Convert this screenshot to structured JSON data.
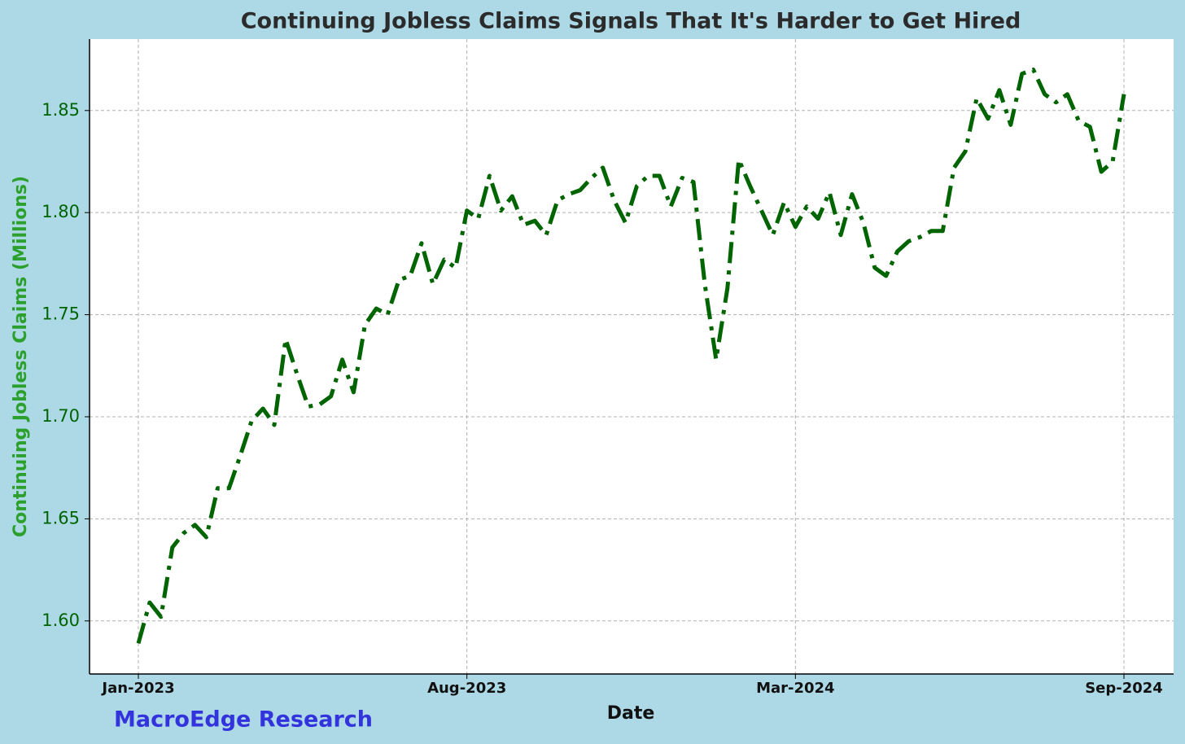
{
  "chart_data": {
    "type": "line",
    "title": "Continuing Jobless Claims Signals That It's Harder to Get Hired",
    "x_label": "Date",
    "y_label": "Continuing Jobless Claims (Millions)",
    "annotation": "MacroEdge Research",
    "categories": [
      "Jan-2023",
      null,
      null,
      null,
      null,
      null,
      null,
      null,
      null,
      null,
      null,
      null,
      null,
      null,
      null,
      null,
      null,
      null,
      null,
      null,
      null,
      null,
      null,
      null,
      null,
      null,
      null,
      null,
      null,
      "Aug-2023",
      null,
      null,
      null,
      null,
      null,
      null,
      null,
      null,
      null,
      null,
      null,
      null,
      null,
      null,
      null,
      null,
      null,
      null,
      null,
      null,
      null,
      null,
      null,
      null,
      null,
      null,
      null,
      null,
      "Mar-2024",
      null,
      null,
      null,
      null,
      null,
      null,
      null,
      null,
      null,
      null,
      null,
      null,
      null,
      null,
      null,
      null,
      null,
      null,
      null,
      null,
      null,
      null,
      null,
      null,
      null,
      null,
      null,
      null,
      "Sep-2024"
    ],
    "series": [
      {
        "name": "Continuing Jobless Claims",
        "color": "#006400",
        "values": [
          1.589,
          1.609,
          1.602,
          1.636,
          1.643,
          1.647,
          1.641,
          1.665,
          1.665,
          1.681,
          1.698,
          1.704,
          1.696,
          1.738,
          1.721,
          1.705,
          1.706,
          1.71,
          1.728,
          1.712,
          1.745,
          1.753,
          1.75,
          1.767,
          1.769,
          1.785,
          1.765,
          1.777,
          1.773,
          1.801,
          1.797,
          1.818,
          1.801,
          1.808,
          1.794,
          1.796,
          1.789,
          1.806,
          1.809,
          1.811,
          1.817,
          1.822,
          1.806,
          1.795,
          1.813,
          1.818,
          1.818,
          1.803,
          1.817,
          1.815,
          1.765,
          1.728,
          1.763,
          1.826,
          1.813,
          1.801,
          1.789,
          1.805,
          1.793,
          1.803,
          1.797,
          1.81,
          1.789,
          1.809,
          1.795,
          1.773,
          1.769,
          1.781,
          1.786,
          1.788,
          1.791,
          1.791,
          1.822,
          1.83,
          1.856,
          1.846,
          1.86,
          1.843,
          1.868,
          1.87,
          1.858,
          1.854,
          1.858,
          1.845,
          1.842,
          1.82,
          1.825,
          1.858
        ]
      }
    ],
    "ylim": [
      1.574,
      1.885
    ],
    "yticks": [
      {
        "value": 1.6,
        "label": "1.60"
      },
      1.65,
      {
        "value": 1.7,
        "label": "1.70"
      },
      1.75,
      {
        "value": 1.8,
        "label": "1.80"
      },
      1.85
    ],
    "grid": true
  }
}
